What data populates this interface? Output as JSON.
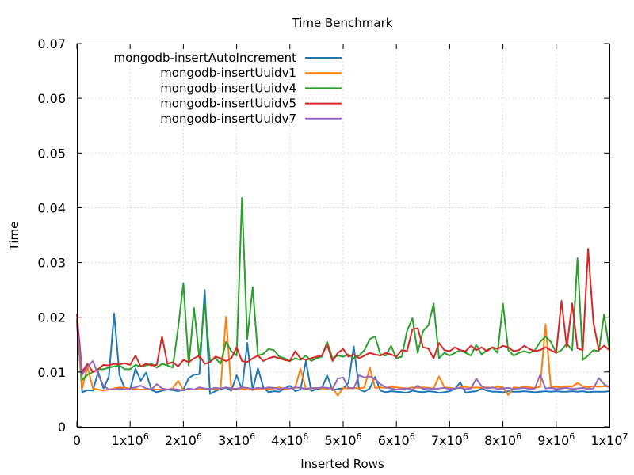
{
  "chart_data": {
    "type": "line",
    "title": "Time Benchmark",
    "xlabel": "Inserted Rows",
    "ylabel": "Time",
    "xlim": [
      0,
      10000000
    ],
    "ylim": [
      0,
      0.07
    ],
    "grid": true,
    "legend_position": "top-left",
    "x_ticks": [
      {
        "value": 0,
        "base": "0",
        "exp": ""
      },
      {
        "value": 1000000,
        "base": "1x10",
        "exp": "6"
      },
      {
        "value": 2000000,
        "base": "2x10",
        "exp": "6"
      },
      {
        "value": 3000000,
        "base": "3x10",
        "exp": "6"
      },
      {
        "value": 4000000,
        "base": "4x10",
        "exp": "6"
      },
      {
        "value": 5000000,
        "base": "5x10",
        "exp": "6"
      },
      {
        "value": 6000000,
        "base": "6x10",
        "exp": "6"
      },
      {
        "value": 7000000,
        "base": "7x10",
        "exp": "6"
      },
      {
        "value": 8000000,
        "base": "8x10",
        "exp": "6"
      },
      {
        "value": 9000000,
        "base": "9x10",
        "exp": "6"
      },
      {
        "value": 10000000,
        "base": "1x10",
        "exp": "7"
      }
    ],
    "y_ticks": [
      {
        "value": 0,
        "label": "0"
      },
      {
        "value": 0.01,
        "label": "0.01"
      },
      {
        "value": 0.02,
        "label": "0.02"
      },
      {
        "value": 0.03,
        "label": "0.03"
      },
      {
        "value": 0.04,
        "label": "0.04"
      },
      {
        "value": 0.05,
        "label": "0.05"
      },
      {
        "value": 0.06,
        "label": "0.06"
      },
      {
        "value": 0.07,
        "label": "0.07"
      }
    ],
    "x_start": 0,
    "x_step": 100000,
    "series": [
      {
        "name": "mongodb-insertAutoIncrement",
        "color": "#1f77b4",
        "values": [
          0.0195,
          0.0063,
          0.0067,
          0.0066,
          0.01,
          0.007,
          0.0091,
          0.0207,
          0.0094,
          0.007,
          0.0068,
          0.0106,
          0.0084,
          0.0099,
          0.0067,
          0.0063,
          0.0066,
          0.0068,
          0.0067,
          0.0065,
          0.0068,
          0.0089,
          0.0095,
          0.0096,
          0.025,
          0.006,
          0.0065,
          0.0069,
          0.0071,
          0.0066,
          0.0094,
          0.0068,
          0.0153,
          0.0067,
          0.0107,
          0.0072,
          0.0063,
          0.0065,
          0.0064,
          0.007,
          0.0075,
          0.0065,
          0.0068,
          0.012,
          0.0065,
          0.0069,
          0.007,
          0.0094,
          0.0067,
          0.0069,
          0.007,
          0.008,
          0.0147,
          0.0068,
          0.0064,
          0.007,
          0.0091,
          0.0066,
          0.0063,
          0.0065,
          0.0064,
          0.0063,
          0.0062,
          0.0066,
          0.0064,
          0.0063,
          0.0065,
          0.0064,
          0.0062,
          0.0063,
          0.0065,
          0.0069,
          0.0081,
          0.0062,
          0.0064,
          0.0065,
          0.007,
          0.0066,
          0.0064,
          0.0064,
          0.0063,
          0.0065,
          0.0064,
          0.0064,
          0.0065,
          0.0064,
          0.0063,
          0.0064,
          0.0065,
          0.0064,
          0.0065,
          0.0064,
          0.0064,
          0.0065,
          0.0064,
          0.0065,
          0.0063,
          0.0064,
          0.0064,
          0.0064,
          0.0065
        ]
      },
      {
        "name": "mongodb-insertUuidv1",
        "color": "#ff7f0e",
        "values": [
          0.019,
          0.007,
          0.011,
          0.007,
          0.0068,
          0.0066,
          0.0068,
          0.007,
          0.0072,
          0.0071,
          0.007,
          0.0069,
          0.0068,
          0.0068,
          0.0069,
          0.0068,
          0.0068,
          0.0068,
          0.007,
          0.0084,
          0.0067,
          0.0069,
          0.0068,
          0.0069,
          0.0068,
          0.0069,
          0.0068,
          0.007,
          0.0201,
          0.0068,
          0.007,
          0.0069,
          0.007,
          0.0069,
          0.0069,
          0.007,
          0.0069,
          0.007,
          0.0072,
          0.0069,
          0.007,
          0.0071,
          0.0106,
          0.0069,
          0.007,
          0.0071,
          0.007,
          0.0069,
          0.0071,
          0.0057,
          0.0071,
          0.007,
          0.0071,
          0.007,
          0.0072,
          0.0108,
          0.0071,
          0.0072,
          0.0071,
          0.0073,
          0.0072,
          0.0071,
          0.007,
          0.0072,
          0.0071,
          0.0072,
          0.0071,
          0.007,
          0.0092,
          0.0072,
          0.0071,
          0.007,
          0.0072,
          0.0073,
          0.0071,
          0.0072,
          0.0071,
          0.0072,
          0.0071,
          0.0073,
          0.0072,
          0.0058,
          0.0072,
          0.0071,
          0.0073,
          0.0072,
          0.0071,
          0.0073,
          0.0187,
          0.0072,
          0.0073,
          0.0072,
          0.0074,
          0.0073,
          0.008,
          0.0074,
          0.0072,
          0.0074,
          0.0073,
          0.0074,
          0.0073
        ]
      },
      {
        "name": "mongodb-insertUuidv4",
        "color": "#2ca02c",
        "values": [
          0.0195,
          0.0085,
          0.0095,
          0.01,
          0.0105,
          0.0105,
          0.0108,
          0.011,
          0.0112,
          0.0105,
          0.0105,
          0.0113,
          0.011,
          0.0112,
          0.0115,
          0.0108,
          0.0115,
          0.0112,
          0.0108,
          0.018,
          0.0262,
          0.0112,
          0.0217,
          0.0125,
          0.0225,
          0.012,
          0.0125,
          0.0115,
          0.0155,
          0.0138,
          0.013,
          0.0418,
          0.016,
          0.0255,
          0.013,
          0.0133,
          0.0142,
          0.014,
          0.0128,
          0.0125,
          0.012,
          0.0125,
          0.0122,
          0.013,
          0.012,
          0.0125,
          0.0128,
          0.0155,
          0.0125,
          0.013,
          0.0128,
          0.0132,
          0.0125,
          0.013,
          0.014,
          0.016,
          0.0165,
          0.0132,
          0.013,
          0.0148,
          0.0125,
          0.0128,
          0.0175,
          0.0198,
          0.0135,
          0.0175,
          0.0185,
          0.0225,
          0.0125,
          0.0135,
          0.013,
          0.0135,
          0.014,
          0.0135,
          0.013,
          0.015,
          0.0132,
          0.014,
          0.0145,
          0.0135,
          0.0225,
          0.014,
          0.013,
          0.0135,
          0.0138,
          0.0135,
          0.014,
          0.0155,
          0.0165,
          0.0155,
          0.0135,
          0.014,
          0.0152,
          0.014,
          0.0308,
          0.0122,
          0.013,
          0.014,
          0.0138,
          0.0205,
          0.014
        ]
      },
      {
        "name": "mongodb-insertUuidv5",
        "color": "#d62728",
        "values": [
          0.0205,
          0.01,
          0.0115,
          0.01,
          0.0105,
          0.0113,
          0.0112,
          0.0115,
          0.0114,
          0.0116,
          0.0113,
          0.013,
          0.011,
          0.0115,
          0.0112,
          0.0113,
          0.0165,
          0.0115,
          0.0118,
          0.011,
          0.0122,
          0.0118,
          0.0125,
          0.013,
          0.0115,
          0.0118,
          0.0128,
          0.0125,
          0.012,
          0.0125,
          0.0145,
          0.012,
          0.0118,
          0.0125,
          0.013,
          0.012,
          0.0125,
          0.0128,
          0.0125,
          0.0122,
          0.012,
          0.0138,
          0.0125,
          0.0122,
          0.0125,
          0.0128,
          0.013,
          0.015,
          0.012,
          0.0135,
          0.0142,
          0.0128,
          0.0132,
          0.0125,
          0.013,
          0.0135,
          0.0132,
          0.013,
          0.0135,
          0.0132,
          0.0128,
          0.014,
          0.0138,
          0.0178,
          0.018,
          0.0145,
          0.0143,
          0.0125,
          0.0153,
          0.014,
          0.0138,
          0.0145,
          0.014,
          0.0138,
          0.0148,
          0.014,
          0.0145,
          0.0138,
          0.0145,
          0.0142,
          0.0148,
          0.0145,
          0.0138,
          0.014,
          0.0148,
          0.0142,
          0.0138,
          0.014,
          0.0145,
          0.014,
          0.0135,
          0.023,
          0.0145,
          0.0225,
          0.0143,
          0.014,
          0.0325,
          0.019,
          0.014,
          0.0148,
          0.014
        ]
      },
      {
        "name": "mongodb-insertUuidv7",
        "color": "#9467bd",
        "values": [
          0.0185,
          0.0095,
          0.011,
          0.012,
          0.0095,
          0.0075,
          0.0068,
          0.0068,
          0.007,
          0.0068,
          0.007,
          0.0072,
          0.0075,
          0.007,
          0.0068,
          0.0078,
          0.007,
          0.0068,
          0.0069,
          0.0068,
          0.0066,
          0.007,
          0.0068,
          0.0072,
          0.007,
          0.0069,
          0.0071,
          0.007,
          0.0072,
          0.007,
          0.0069,
          0.0072,
          0.0071,
          0.0069,
          0.0071,
          0.007,
          0.0072,
          0.0071,
          0.0069,
          0.0071,
          0.007,
          0.0072,
          0.0071,
          0.0069,
          0.0071,
          0.007,
          0.0072,
          0.0071,
          0.0069,
          0.0088,
          0.009,
          0.0071,
          0.007,
          0.0094,
          0.009,
          0.0092,
          0.0087,
          0.0078,
          0.0072,
          0.007,
          0.0068,
          0.0069,
          0.007,
          0.0068,
          0.0075,
          0.0069,
          0.007,
          0.0069,
          0.007,
          0.0071,
          0.0069,
          0.007,
          0.0071,
          0.0069,
          0.007,
          0.0088,
          0.0074,
          0.007,
          0.0072,
          0.0069,
          0.007,
          0.0071,
          0.0069,
          0.007,
          0.0071,
          0.0069,
          0.007,
          0.0095,
          0.007,
          0.0071,
          0.0069,
          0.007,
          0.0071,
          0.0069,
          0.007,
          0.0071,
          0.0069,
          0.007,
          0.0089,
          0.0078,
          0.0072
        ]
      }
    ]
  }
}
